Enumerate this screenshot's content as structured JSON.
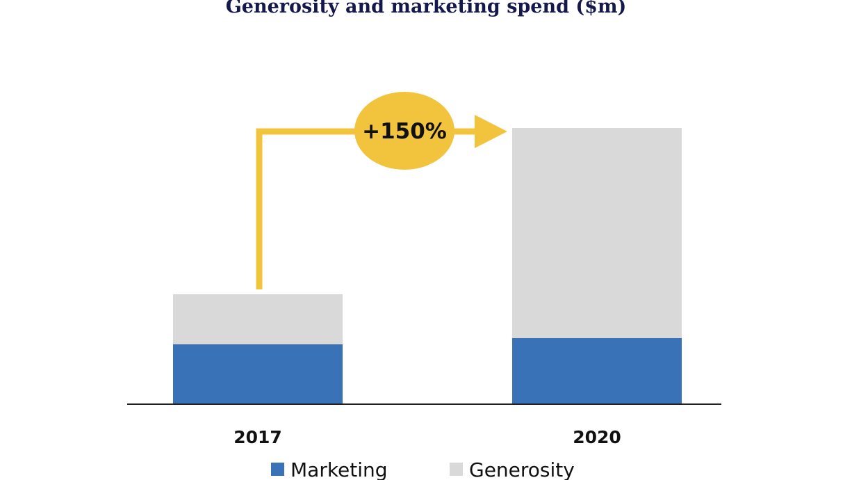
{
  "chart_data": {
    "type": "bar",
    "stacked": true,
    "title": "Generosity and marketing spend ($m)",
    "categories": [
      "2017",
      "2020"
    ],
    "series": [
      {
        "name": "Marketing",
        "color": "#3a72b8",
        "values": [
          85,
          94
        ]
      },
      {
        "name": "Generosity",
        "color": "#d9d9d9",
        "values": [
          72,
          302
        ]
      }
    ],
    "ylim": [
      0,
      400
    ],
    "grid": false,
    "legend_position": "bottom",
    "annotation": {
      "text": "+150%",
      "from": "2017",
      "to": "2020",
      "color": "#f2c43d",
      "arrow_color": "#f2c43d"
    }
  }
}
